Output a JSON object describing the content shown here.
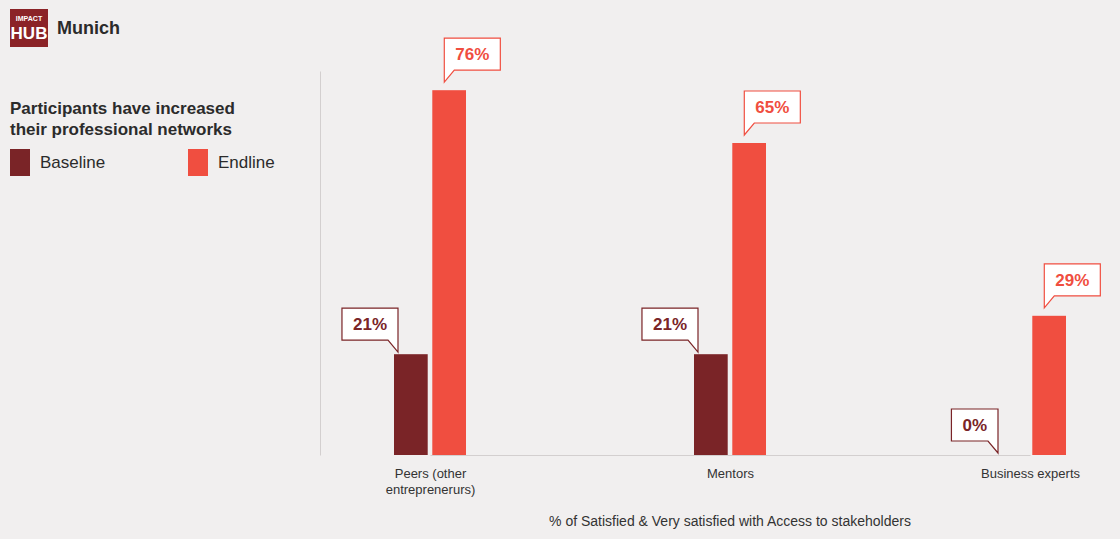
{
  "chart_data": {
    "type": "bar",
    "logo_text": [
      "IMPACT",
      "HUB"
    ],
    "logo_label": "Munich",
    "title": "Participants have increased their professional networks",
    "x_label": "% of Satisfied & Very satisfied with Access to stakeholders",
    "categories": [
      "Peers (other entreprenerurs)",
      "Mentors",
      "Business experts"
    ],
    "series": [
      {
        "name": "Baseline",
        "color": "#7a2427",
        "values": [
          21,
          21,
          0
        ],
        "value_labels": [
          "21%",
          "21%",
          "0%"
        ]
      },
      {
        "name": "Endline",
        "color": "#f04e40",
        "values": [
          76,
          65,
          29
        ],
        "value_labels": [
          "76%",
          "65%",
          "29%"
        ]
      }
    ],
    "ylim": [
      0,
      80
    ],
    "tick_labels": "x",
    "data_labels": true,
    "legend": "top-left"
  }
}
